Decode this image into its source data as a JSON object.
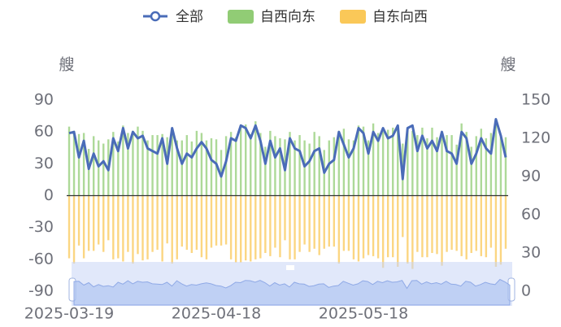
{
  "chart_data": {
    "type": "bar",
    "legend": "top",
    "ylabel": "艘",
    "y2label": "艘",
    "categories": [
      "2025-03-19",
      null,
      null,
      null,
      null,
      null,
      null,
      null,
      null,
      null,
      null,
      null,
      null,
      null,
      null,
      null,
      null,
      null,
      null,
      null,
      null,
      null,
      null,
      null,
      null,
      null,
      null,
      null,
      null,
      null,
      "2025-04-18",
      null,
      null,
      null,
      null,
      null,
      null,
      null,
      null,
      null,
      null,
      null,
      null,
      null,
      null,
      null,
      null,
      null,
      null,
      null,
      null,
      null,
      null,
      null,
      null,
      null,
      null,
      null,
      null,
      null,
      "2025-05-18",
      null,
      null,
      null,
      null,
      null,
      null,
      null,
      null,
      null,
      null,
      null,
      null,
      null,
      null,
      null,
      null,
      null,
      null,
      null,
      null,
      null,
      null,
      null,
      null,
      null,
      null,
      null,
      null,
      null
    ],
    "ylim": [
      -90,
      90
    ],
    "yticks": [
      90,
      60,
      30,
      0,
      -30,
      -60,
      -90
    ],
    "y2lim": [
      0,
      150
    ],
    "y2ticks": [
      150,
      120,
      90,
      60,
      30,
      0
    ],
    "grid": false,
    "series": [
      {
        "name": "全部",
        "type": "line",
        "axis": "y2",
        "color": "#4a6cb8",
        "values": [
          124,
          125,
          105,
          118,
          96,
          108,
          98,
          102,
          95,
          120,
          110,
          128,
          112,
          125,
          120,
          122,
          112,
          110,
          108,
          120,
          100,
          128,
          112,
          100,
          108,
          105,
          112,
          117,
          112,
          103,
          100,
          90,
          102,
          120,
          118,
          130,
          128,
          120,
          130,
          118,
          100,
          118,
          105,
          112,
          95,
          120,
          112,
          110,
          98,
          102,
          110,
          112,
          93,
          100,
          103,
          125,
          115,
          105,
          112,
          128,
          124,
          108,
          125,
          118,
          128,
          120,
          122,
          130,
          88,
          128,
          130,
          110,
          122,
          112,
          118,
          110,
          125,
          110,
          108,
          100,
          125,
          120,
          100,
          108,
          120,
          112,
          108,
          135,
          122,
          105
        ]
      },
      {
        "name": "自西向东",
        "type": "bar",
        "color": "#91cc75",
        "values": [
          65,
          61,
          58,
          59,
          44,
          56,
          52,
          49,
          53,
          60,
          51,
          66,
          59,
          61,
          65,
          61,
          52,
          57,
          57,
          58,
          55,
          64,
          52,
          52,
          57,
          51,
          61,
          59,
          52,
          54,
          53,
          43,
          56,
          60,
          55,
          67,
          67,
          58,
          70,
          59,
          46,
          61,
          56,
          54,
          53,
          60,
          52,
          57,
          52,
          49,
          60,
          56,
          43,
          52,
          55,
          61,
          63,
          53,
          52,
          66,
          65,
          52,
          68,
          59,
          60,
          62,
          64,
          63,
          49,
          64,
          61,
          57,
          64,
          54,
          64,
          55,
          59,
          57,
          57,
          48,
          68,
          60,
          46,
          56,
          63,
          54,
          59,
          68,
          57,
          55
        ]
      },
      {
        "name": "自东向西",
        "type": "bar",
        "color": "#fac858",
        "values": [
          -59,
          -64,
          -47,
          -59,
          -52,
          -52,
          -46,
          -53,
          -42,
          -60,
          -59,
          -62,
          -53,
          -64,
          -55,
          -61,
          -60,
          -53,
          -51,
          -62,
          -45,
          -64,
          -60,
          -48,
          -51,
          -54,
          -51,
          -58,
          -60,
          -49,
          -47,
          -47,
          -46,
          -60,
          -63,
          -63,
          -61,
          -62,
          -60,
          -59,
          -54,
          -57,
          -49,
          -58,
          -42,
          -60,
          -60,
          -53,
          -46,
          -53,
          -50,
          -56,
          -50,
          -48,
          -48,
          -64,
          -52,
          -52,
          -60,
          -62,
          -59,
          -56,
          -57,
          -59,
          -68,
          -58,
          -58,
          -67,
          -39,
          -64,
          -69,
          -53,
          -58,
          -58,
          -54,
          -55,
          -66,
          -53,
          -51,
          -52,
          -57,
          -60,
          -54,
          -52,
          -57,
          -58,
          -49,
          -67,
          -65,
          -50
        ]
      }
    ]
  }
}
